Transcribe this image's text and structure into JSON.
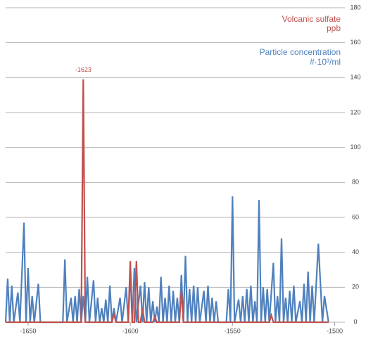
{
  "chart_data": {
    "type": "line",
    "series": [
      {
        "name": "Particle concentration",
        "unit": "#·10³/ml",
        "color": "#4f81bd",
        "x": [
          -1661,
          -1660,
          -1659,
          -1658,
          -1657,
          -1655,
          -1654,
          -1652,
          -1651,
          -1650,
          -1649,
          -1648,
          -1647,
          -1645,
          -1644,
          -1633,
          -1632,
          -1631,
          -1629,
          -1628,
          -1627,
          -1626,
          -1625,
          -1624,
          -1623,
          -1622,
          -1621,
          -1620,
          -1618,
          -1617,
          -1616,
          -1615,
          -1614,
          -1613,
          -1612,
          -1611,
          -1610,
          -1609,
          -1608,
          -1607,
          -1605,
          -1604,
          -1602,
          -1601,
          -1600,
          -1599,
          -1598,
          -1597,
          -1595,
          -1594,
          -1593,
          -1592,
          -1591,
          -1590,
          -1589,
          -1588,
          -1587,
          -1586,
          -1585,
          -1584,
          -1583,
          -1582,
          -1581,
          -1580,
          -1579,
          -1578,
          -1577,
          -1576,
          -1575,
          -1574,
          -1573,
          -1572,
          -1571,
          -1570,
          -1569,
          -1568,
          -1567,
          -1566,
          -1564,
          -1563,
          -1562,
          -1561,
          -1560,
          -1559,
          -1558,
          -1557,
          -1553,
          -1552,
          -1551,
          -1550,
          -1549,
          -1547,
          -1546,
          -1545,
          -1544,
          -1543,
          -1542,
          -1541,
          -1540,
          -1539,
          -1538,
          -1537,
          -1536,
          -1535,
          -1534,
          -1533,
          -1532,
          -1530,
          -1529,
          -1528,
          -1527,
          -1526,
          -1525,
          -1524,
          -1523,
          -1522,
          -1521,
          -1520,
          -1519,
          -1517,
          -1516,
          -1515,
          -1514,
          -1513,
          -1512,
          -1511,
          -1510,
          -1508,
          -1506,
          -1505,
          -1503
        ],
        "values": [
          0,
          25,
          0,
          21,
          0,
          17,
          0,
          57,
          0,
          31,
          0,
          15,
          0,
          22,
          0,
          0,
          36,
          0,
          14,
          0,
          15,
          0,
          19,
          0,
          15,
          0,
          26,
          0,
          24,
          0,
          14,
          0,
          8,
          0,
          13,
          0,
          21,
          0,
          8,
          0,
          14,
          0,
          20,
          0,
          29,
          0,
          31,
          0,
          21,
          0,
          23,
          0,
          20,
          0,
          12,
          0,
          9,
          0,
          26,
          0,
          14,
          0,
          21,
          0,
          18,
          0,
          14,
          0,
          27,
          0,
          38,
          0,
          19,
          0,
          21,
          0,
          20,
          0,
          18,
          0,
          21,
          0,
          14,
          0,
          12,
          0,
          0,
          19,
          0,
          72,
          0,
          13,
          0,
          15,
          0,
          19,
          0,
          21,
          0,
          12,
          0,
          70,
          0,
          20,
          0,
          19,
          0,
          34,
          0,
          15,
          0,
          48,
          0,
          14,
          0,
          18,
          0,
          21,
          0,
          12,
          0,
          22,
          0,
          29,
          0,
          21,
          0,
          45,
          0,
          15,
          0
        ]
      },
      {
        "name": "Volcanic sulfate",
        "unit": "ppb",
        "color": "#c0504d",
        "x": [
          -1661,
          -1624,
          -1623,
          -1622,
          -1609,
          -1608,
          -1607,
          -1601,
          -1600,
          -1599,
          -1598,
          -1597,
          -1596,
          -1595,
          -1594,
          -1593,
          -1589,
          -1588,
          -1587,
          -1576,
          -1575,
          -1574,
          -1532,
          -1531,
          -1530,
          -1503
        ],
        "values": [
          0,
          0,
          139,
          0,
          0,
          5,
          0,
          0,
          35,
          0,
          0,
          35,
          0,
          0,
          8,
          0,
          0,
          3,
          0,
          0,
          18,
          0,
          0,
          4,
          0,
          0
        ]
      }
    ],
    "annotations": [
      {
        "label": "-1623",
        "x": -1623,
        "y": 139
      }
    ],
    "xlim": [
      -1661,
      -1495
    ],
    "xticks": [
      -1650,
      -1600,
      -1550,
      -1500
    ],
    "ylim": [
      0,
      180
    ],
    "yticks": [
      0,
      20,
      40,
      60,
      80,
      100,
      120,
      140,
      160,
      180
    ],
    "grid": true
  }
}
